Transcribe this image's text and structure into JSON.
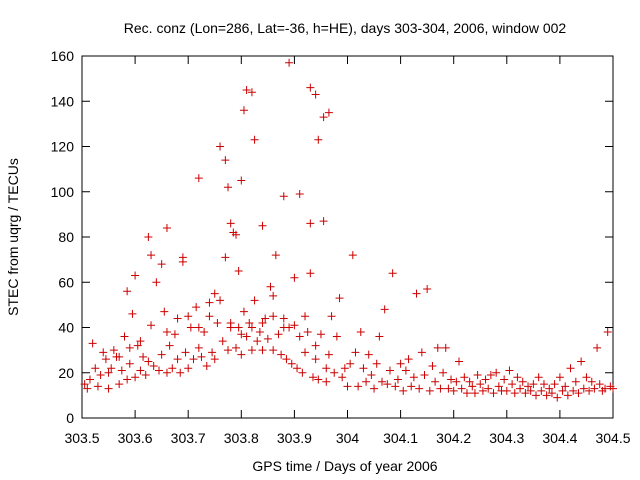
{
  "chart_data": {
    "type": "scatter",
    "title": "Rec. conz (Lon=286, Lat=-36, h=HE), days 303-304, 2006, window 002",
    "xlabel": "GPS time / Days of year 2006",
    "ylabel": "STEC from uqrg / TECUs",
    "xlim": [
      303.5,
      304.5
    ],
    "ylim": [
      0,
      160
    ],
    "xticks": [
      "303.5",
      "303.6",
      "303.7",
      "303.8",
      "303.9",
      "304",
      "304.1",
      "304.2",
      "304.3",
      "304.4",
      "304.5"
    ],
    "yticks": [
      "0",
      "20",
      "40",
      "60",
      "80",
      "100",
      "120",
      "140",
      "160"
    ],
    "grid": false,
    "marker": "+",
    "series_color": "#cc0000",
    "series": [
      {
        "name": "STEC",
        "points": [
          [
            303.505,
            15
          ],
          [
            303.51,
            13
          ],
          [
            303.515,
            17
          ],
          [
            303.52,
            33
          ],
          [
            303.525,
            22
          ],
          [
            303.53,
            14
          ],
          [
            303.535,
            19
          ],
          [
            303.54,
            29
          ],
          [
            303.545,
            26
          ],
          [
            303.55,
            13
          ],
          [
            303.555,
            22
          ],
          [
            303.56,
            30
          ],
          [
            303.565,
            27
          ],
          [
            303.57,
            15
          ],
          [
            303.575,
            21
          ],
          [
            303.58,
            36
          ],
          [
            303.585,
            17
          ],
          [
            303.59,
            24
          ],
          [
            303.595,
            46
          ],
          [
            303.6,
            18
          ],
          [
            303.605,
            32
          ],
          [
            303.61,
            21
          ],
          [
            303.615,
            27
          ],
          [
            303.62,
            19
          ],
          [
            303.625,
            25
          ],
          [
            303.63,
            72
          ],
          [
            303.635,
            23
          ],
          [
            303.64,
            60
          ],
          [
            303.645,
            21
          ],
          [
            303.65,
            28
          ],
          [
            303.655,
            47
          ],
          [
            303.66,
            20
          ],
          [
            303.665,
            32
          ],
          [
            303.67,
            22
          ],
          [
            303.675,
            37
          ],
          [
            303.68,
            26
          ],
          [
            303.685,
            20
          ],
          [
            303.69,
            71
          ],
          [
            303.695,
            29
          ],
          [
            303.7,
            22
          ],
          [
            303.705,
            40
          ],
          [
            303.71,
            26
          ],
          [
            303.715,
            49
          ],
          [
            303.72,
            31
          ],
          [
            303.725,
            27
          ],
          [
            303.73,
            38
          ],
          [
            303.735,
            23
          ],
          [
            303.74,
            45
          ],
          [
            303.745,
            29
          ],
          [
            303.75,
            26
          ],
          [
            303.755,
            42
          ],
          [
            303.76,
            52
          ],
          [
            303.765,
            34
          ],
          [
            303.77,
            71
          ],
          [
            303.775,
            30
          ],
          [
            303.78,
            40
          ],
          [
            303.785,
            82
          ],
          [
            303.79,
            31
          ],
          [
            303.795,
            40
          ],
          [
            303.8,
            28
          ],
          [
            303.805,
            47
          ],
          [
            303.81,
            36
          ],
          [
            303.815,
            42
          ],
          [
            303.82,
            30
          ],
          [
            303.825,
            52
          ],
          [
            303.83,
            34
          ],
          [
            303.835,
            38
          ],
          [
            303.84,
            30
          ],
          [
            303.845,
            44
          ],
          [
            303.85,
            35
          ],
          [
            303.855,
            58
          ],
          [
            303.86,
            30
          ],
          [
            303.865,
            72
          ],
          [
            303.87,
            37
          ],
          [
            303.875,
            28
          ],
          [
            303.88,
            44
          ],
          [
            303.885,
            26
          ],
          [
            303.89,
            40
          ],
          [
            303.895,
            24
          ],
          [
            303.9,
            62
          ],
          [
            303.905,
            22
          ],
          [
            303.91,
            36
          ],
          [
            303.915,
            20
          ],
          [
            303.92,
            45
          ],
          [
            303.925,
            38
          ],
          [
            303.93,
            64
          ],
          [
            303.935,
            18
          ],
          [
            303.94,
            32
          ],
          [
            303.945,
            17
          ],
          [
            303.95,
            37
          ],
          [
            303.955,
            87
          ],
          [
            303.96,
            16
          ],
          [
            303.965,
            28
          ],
          [
            303.97,
            45
          ],
          [
            303.975,
            20
          ],
          [
            303.98,
            36
          ],
          [
            303.985,
            53
          ],
          [
            303.99,
            18
          ],
          [
            303.995,
            22
          ],
          [
            304.0,
            14
          ],
          [
            304.005,
            24
          ],
          [
            304.01,
            72
          ],
          [
            304.015,
            29
          ],
          [
            304.02,
            14
          ],
          [
            304.025,
            38
          ],
          [
            304.03,
            22
          ],
          [
            304.035,
            16
          ],
          [
            304.04,
            28
          ],
          [
            304.045,
            19
          ],
          [
            304.05,
            13
          ],
          [
            304.055,
            24
          ],
          [
            304.06,
            36
          ],
          [
            304.065,
            16
          ],
          [
            304.07,
            48
          ],
          [
            304.075,
            15
          ],
          [
            304.08,
            21
          ],
          [
            304.085,
            64
          ],
          [
            304.09,
            14
          ],
          [
            304.095,
            17
          ],
          [
            304.1,
            24
          ],
          [
            304.105,
            12
          ],
          [
            304.11,
            21
          ],
          [
            304.115,
            26
          ],
          [
            304.12,
            14
          ],
          [
            304.125,
            18
          ],
          [
            304.13,
            55
          ],
          [
            304.135,
            13
          ],
          [
            304.14,
            29
          ],
          [
            304.145,
            19
          ],
          [
            304.15,
            57
          ],
          [
            304.155,
            12
          ],
          [
            304.16,
            23
          ],
          [
            304.165,
            16
          ],
          [
            304.17,
            31
          ],
          [
            304.175,
            13
          ],
          [
            304.18,
            20
          ],
          [
            304.185,
            31
          ],
          [
            304.19,
            13
          ],
          [
            304.195,
            17
          ],
          [
            304.2,
            12
          ],
          [
            304.205,
            16
          ],
          [
            304.21,
            25
          ],
          [
            304.215,
            13
          ],
          [
            304.22,
            18
          ],
          [
            304.225,
            11
          ],
          [
            304.23,
            16
          ],
          [
            304.235,
            14
          ],
          [
            304.24,
            11
          ],
          [
            304.245,
            19
          ],
          [
            304.25,
            15
          ],
          [
            304.255,
            12
          ],
          [
            304.26,
            17
          ],
          [
            304.265,
            13
          ],
          [
            304.27,
            19
          ],
          [
            304.275,
            11
          ],
          [
            304.28,
            20
          ],
          [
            304.285,
            14
          ],
          [
            304.29,
            12
          ],
          [
            304.295,
            17
          ],
          [
            304.3,
            12
          ],
          [
            304.305,
            21
          ],
          [
            304.31,
            15
          ],
          [
            304.315,
            11
          ],
          [
            304.32,
            18
          ],
          [
            304.325,
            13
          ],
          [
            304.33,
            16
          ],
          [
            304.335,
            11
          ],
          [
            304.34,
            14
          ],
          [
            304.345,
            12
          ],
          [
            304.35,
            15
          ],
          [
            304.355,
            10
          ],
          [
            304.36,
            18
          ],
          [
            304.365,
            12
          ],
          [
            304.37,
            15
          ],
          [
            304.375,
            10
          ],
          [
            304.38,
            13
          ],
          [
            304.385,
            11
          ],
          [
            304.39,
            15
          ],
          [
            304.395,
            9
          ],
          [
            304.4,
            18
          ],
          [
            304.405,
            12
          ],
          [
            304.41,
            14
          ],
          [
            304.415,
            10
          ],
          [
            304.42,
            22
          ],
          [
            304.425,
            12
          ],
          [
            304.43,
            16
          ],
          [
            304.435,
            11
          ],
          [
            304.44,
            25
          ],
          [
            304.445,
            13
          ],
          [
            304.45,
            18
          ],
          [
            304.455,
            12
          ],
          [
            304.46,
            16
          ],
          [
            304.465,
            13
          ],
          [
            304.47,
            31
          ],
          [
            304.475,
            15
          ],
          [
            304.48,
            12
          ],
          [
            304.485,
            13
          ],
          [
            304.49,
            38
          ],
          [
            304.495,
            14
          ],
          [
            304.5,
            13
          ],
          [
            303.76,
            120
          ],
          [
            303.77,
            114
          ],
          [
            303.775,
            102
          ],
          [
            303.78,
            86
          ],
          [
            303.79,
            81
          ],
          [
            303.795,
            65
          ],
          [
            303.8,
            105
          ],
          [
            303.805,
            136
          ],
          [
            303.81,
            145
          ],
          [
            303.82,
            144
          ],
          [
            303.825,
            123
          ],
          [
            303.84,
            85
          ],
          [
            303.86,
            54
          ],
          [
            303.88,
            98
          ],
          [
            303.89,
            157
          ],
          [
            303.91,
            99
          ],
          [
            303.93,
            146
          ],
          [
            303.94,
            143
          ],
          [
            303.945,
            123
          ],
          [
            303.955,
            133
          ],
          [
            303.965,
            135
          ],
          [
            303.93,
            86
          ],
          [
            303.72,
            106
          ],
          [
            303.66,
            84
          ],
          [
            303.625,
            80
          ],
          [
            303.6,
            63
          ],
          [
            303.585,
            56
          ],
          [
            303.65,
            68
          ],
          [
            303.69,
            69
          ],
          [
            303.75,
            55
          ],
          [
            303.55,
            20
          ],
          [
            303.57,
            27
          ],
          [
            303.59,
            31
          ],
          [
            303.61,
            34
          ],
          [
            303.63,
            41
          ],
          [
            303.66,
            38
          ],
          [
            303.68,
            44
          ],
          [
            303.7,
            45
          ],
          [
            303.72,
            40
          ],
          [
            303.74,
            51
          ],
          [
            303.78,
            42
          ],
          [
            303.8,
            37
          ],
          [
            303.82,
            40
          ],
          [
            303.84,
            42
          ],
          [
            303.86,
            45
          ],
          [
            303.88,
            40
          ],
          [
            303.9,
            41
          ],
          [
            303.92,
            29
          ],
          [
            303.94,
            26
          ],
          [
            303.96,
            22
          ]
        ]
      }
    ]
  }
}
